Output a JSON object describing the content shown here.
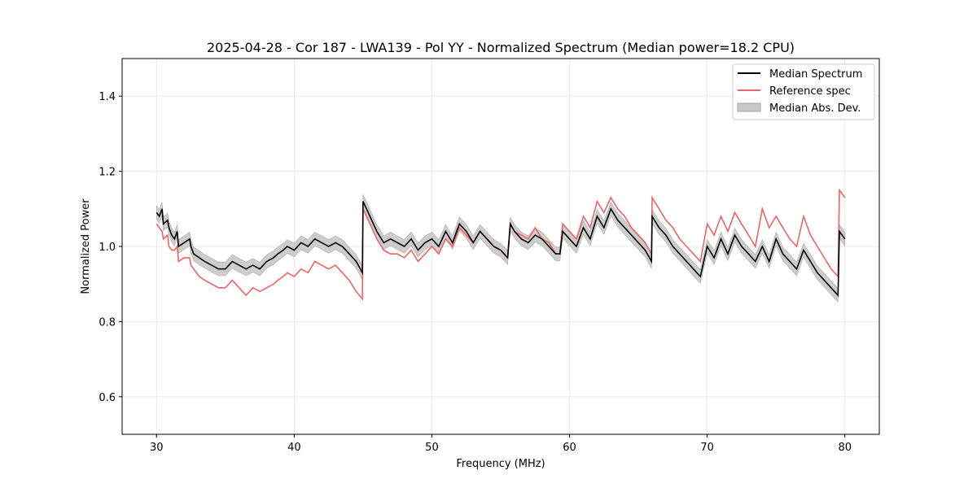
{
  "chart_data": {
    "type": "line",
    "title": "2025-04-28 - Cor 187 - LWA139 - Pol YY - Normalized Spectrum (Median power=18.2 CPU)",
    "xlabel": "Frequency (MHz)",
    "ylabel": "Normalized Power",
    "xlim": [
      27.5,
      82.5
    ],
    "ylim": [
      0.5,
      1.5
    ],
    "xticks": [
      30,
      40,
      50,
      60,
      70,
      80
    ],
    "yticks": [
      0.6,
      0.8,
      1.0,
      1.2,
      1.4
    ],
    "xtick_labels": [
      "30",
      "40",
      "50",
      "60",
      "70",
      "80"
    ],
    "ytick_labels": [
      "0.6",
      "0.8",
      "1.0",
      "1.2",
      "1.4"
    ],
    "grid": true,
    "legend_position": "top-right",
    "legend": [
      "Median Spectrum",
      "Reference spec",
      "Median Abs. Dev."
    ],
    "colors": {
      "median": "#000000",
      "reference": "#f06464",
      "mad_fill": "#c8c8c8"
    },
    "series": [
      {
        "name": "Median Spectrum",
        "x": [
          30.0,
          30.2,
          30.4,
          30.5,
          30.8,
          30.9,
          31.1,
          31.3,
          31.5,
          31.6,
          32.0,
          32.4,
          32.5,
          32.7,
          33.1,
          33.5,
          34.0,
          34.5,
          35.0,
          35.5,
          36.0,
          36.5,
          37.0,
          37.5,
          38.0,
          38.5,
          38.8,
          39.2,
          39.5,
          40.0,
          40.5,
          41.0,
          41.5,
          42.0,
          42.5,
          43.0,
          43.5,
          44.0,
          44.5,
          44.95,
          45.0,
          45.5,
          46.0,
          46.5,
          47.0,
          47.5,
          48.0,
          48.5,
          49.0,
          49.5,
          50.0,
          50.5,
          51.0,
          51.5,
          52.0,
          52.5,
          53.0,
          53.5,
          54.0,
          54.5,
          55.0,
          55.5,
          55.7,
          56.0,
          56.5,
          57.0,
          57.5,
          58.0,
          58.5,
          59.0,
          59.3,
          59.5,
          60.0,
          60.5,
          61.0,
          61.5,
          62.0,
          62.5,
          63.0,
          63.5,
          64.0,
          64.5,
          65.0,
          65.5,
          65.95,
          66.0,
          66.5,
          67.0,
          67.5,
          68.0,
          68.5,
          69.0,
          69.5,
          70.0,
          70.5,
          71.0,
          71.5,
          72.0,
          72.5,
          73.0,
          73.5,
          74.0,
          74.5,
          75.0,
          75.5,
          76.0,
          76.5,
          77.0,
          77.5,
          78.0,
          78.5,
          79.0,
          79.5,
          79.6,
          80.0
        ],
        "values": [
          1.09,
          1.08,
          1.1,
          1.06,
          1.07,
          1.05,
          1.03,
          1.02,
          1.04,
          1.0,
          1.01,
          1.02,
          1.0,
          0.98,
          0.97,
          0.96,
          0.95,
          0.94,
          0.94,
          0.96,
          0.95,
          0.94,
          0.95,
          0.94,
          0.96,
          0.97,
          0.98,
          0.99,
          1.0,
          0.99,
          1.01,
          1.0,
          1.02,
          1.01,
          1.0,
          1.01,
          1.0,
          0.98,
          0.96,
          0.93,
          1.12,
          1.08,
          1.04,
          1.01,
          1.02,
          1.01,
          1.0,
          1.02,
          0.99,
          1.01,
          1.02,
          1.0,
          1.04,
          1.01,
          1.06,
          1.04,
          1.01,
          1.04,
          1.02,
          1.0,
          0.99,
          0.97,
          1.06,
          1.04,
          1.02,
          1.01,
          1.03,
          1.02,
          1.0,
          0.98,
          0.98,
          1.04,
          1.02,
          1.0,
          1.05,
          1.02,
          1.08,
          1.05,
          1.1,
          1.07,
          1.05,
          1.03,
          1.01,
          0.99,
          0.96,
          1.08,
          1.05,
          1.03,
          1.0,
          0.98,
          0.96,
          0.94,
          0.92,
          1.0,
          0.97,
          1.02,
          0.98,
          1.03,
          1.0,
          0.98,
          0.96,
          1.0,
          0.96,
          1.02,
          0.98,
          0.96,
          0.94,
          0.99,
          0.96,
          0.93,
          0.91,
          0.89,
          0.87,
          1.04,
          1.02
        ]
      },
      {
        "name": "Reference spec",
        "x": [
          30.0,
          30.2,
          30.4,
          30.5,
          30.8,
          30.9,
          31.1,
          31.3,
          31.5,
          31.6,
          32.0,
          32.4,
          32.5,
          32.7,
          33.1,
          33.5,
          34.0,
          34.5,
          35.0,
          35.5,
          36.0,
          36.5,
          37.0,
          37.5,
          38.0,
          38.5,
          38.8,
          39.2,
          39.5,
          40.0,
          40.5,
          41.0,
          41.5,
          42.0,
          42.5,
          43.0,
          43.5,
          44.0,
          44.5,
          44.95,
          45.0,
          45.5,
          46.0,
          46.5,
          47.0,
          47.5,
          48.0,
          48.5,
          49.0,
          49.5,
          50.0,
          50.5,
          51.0,
          51.5,
          52.0,
          52.5,
          53.0,
          53.5,
          54.0,
          54.5,
          55.0,
          55.5,
          55.7,
          56.0,
          56.5,
          57.0,
          57.5,
          58.0,
          58.5,
          59.0,
          59.3,
          59.5,
          60.0,
          60.5,
          61.0,
          61.5,
          62.0,
          62.5,
          63.0,
          63.5,
          64.0,
          64.5,
          65.0,
          65.5,
          65.95,
          66.0,
          66.5,
          67.0,
          67.5,
          68.0,
          68.5,
          69.0,
          69.5,
          70.0,
          70.5,
          71.0,
          71.5,
          72.0,
          72.5,
          73.0,
          73.5,
          74.0,
          74.5,
          75.0,
          75.5,
          76.0,
          76.5,
          77.0,
          77.5,
          78.0,
          78.5,
          79.0,
          79.5,
          79.6,
          80.0
        ],
        "values": [
          1.06,
          1.05,
          1.04,
          1.02,
          1.03,
          1.0,
          0.99,
          0.99,
          1.0,
          0.96,
          0.97,
          0.97,
          0.95,
          0.94,
          0.92,
          0.91,
          0.9,
          0.89,
          0.89,
          0.91,
          0.89,
          0.87,
          0.89,
          0.88,
          0.89,
          0.9,
          0.91,
          0.92,
          0.93,
          0.92,
          0.94,
          0.93,
          0.96,
          0.95,
          0.94,
          0.95,
          0.93,
          0.91,
          0.88,
          0.86,
          1.1,
          1.06,
          1.02,
          0.99,
          0.98,
          0.98,
          0.97,
          0.99,
          0.96,
          0.98,
          1.0,
          0.98,
          1.02,
          1.0,
          1.05,
          1.03,
          1.01,
          1.04,
          1.02,
          1.0,
          0.99,
          0.97,
          1.06,
          1.04,
          1.03,
          1.02,
          1.05,
          1.02,
          1.01,
          0.98,
          0.98,
          1.06,
          1.04,
          1.02,
          1.08,
          1.05,
          1.12,
          1.09,
          1.13,
          1.1,
          1.08,
          1.05,
          1.03,
          1.01,
          0.98,
          1.13,
          1.1,
          1.07,
          1.05,
          1.02,
          1.0,
          0.98,
          0.96,
          1.06,
          1.03,
          1.08,
          1.04,
          1.09,
          1.06,
          1.03,
          1.0,
          1.1,
          1.05,
          1.08,
          1.05,
          1.02,
          1.0,
          1.08,
          1.03,
          1.0,
          0.97,
          0.94,
          0.92,
          1.15,
          1.13
        ]
      }
    ],
    "mad_halfwidth": 0.018
  }
}
